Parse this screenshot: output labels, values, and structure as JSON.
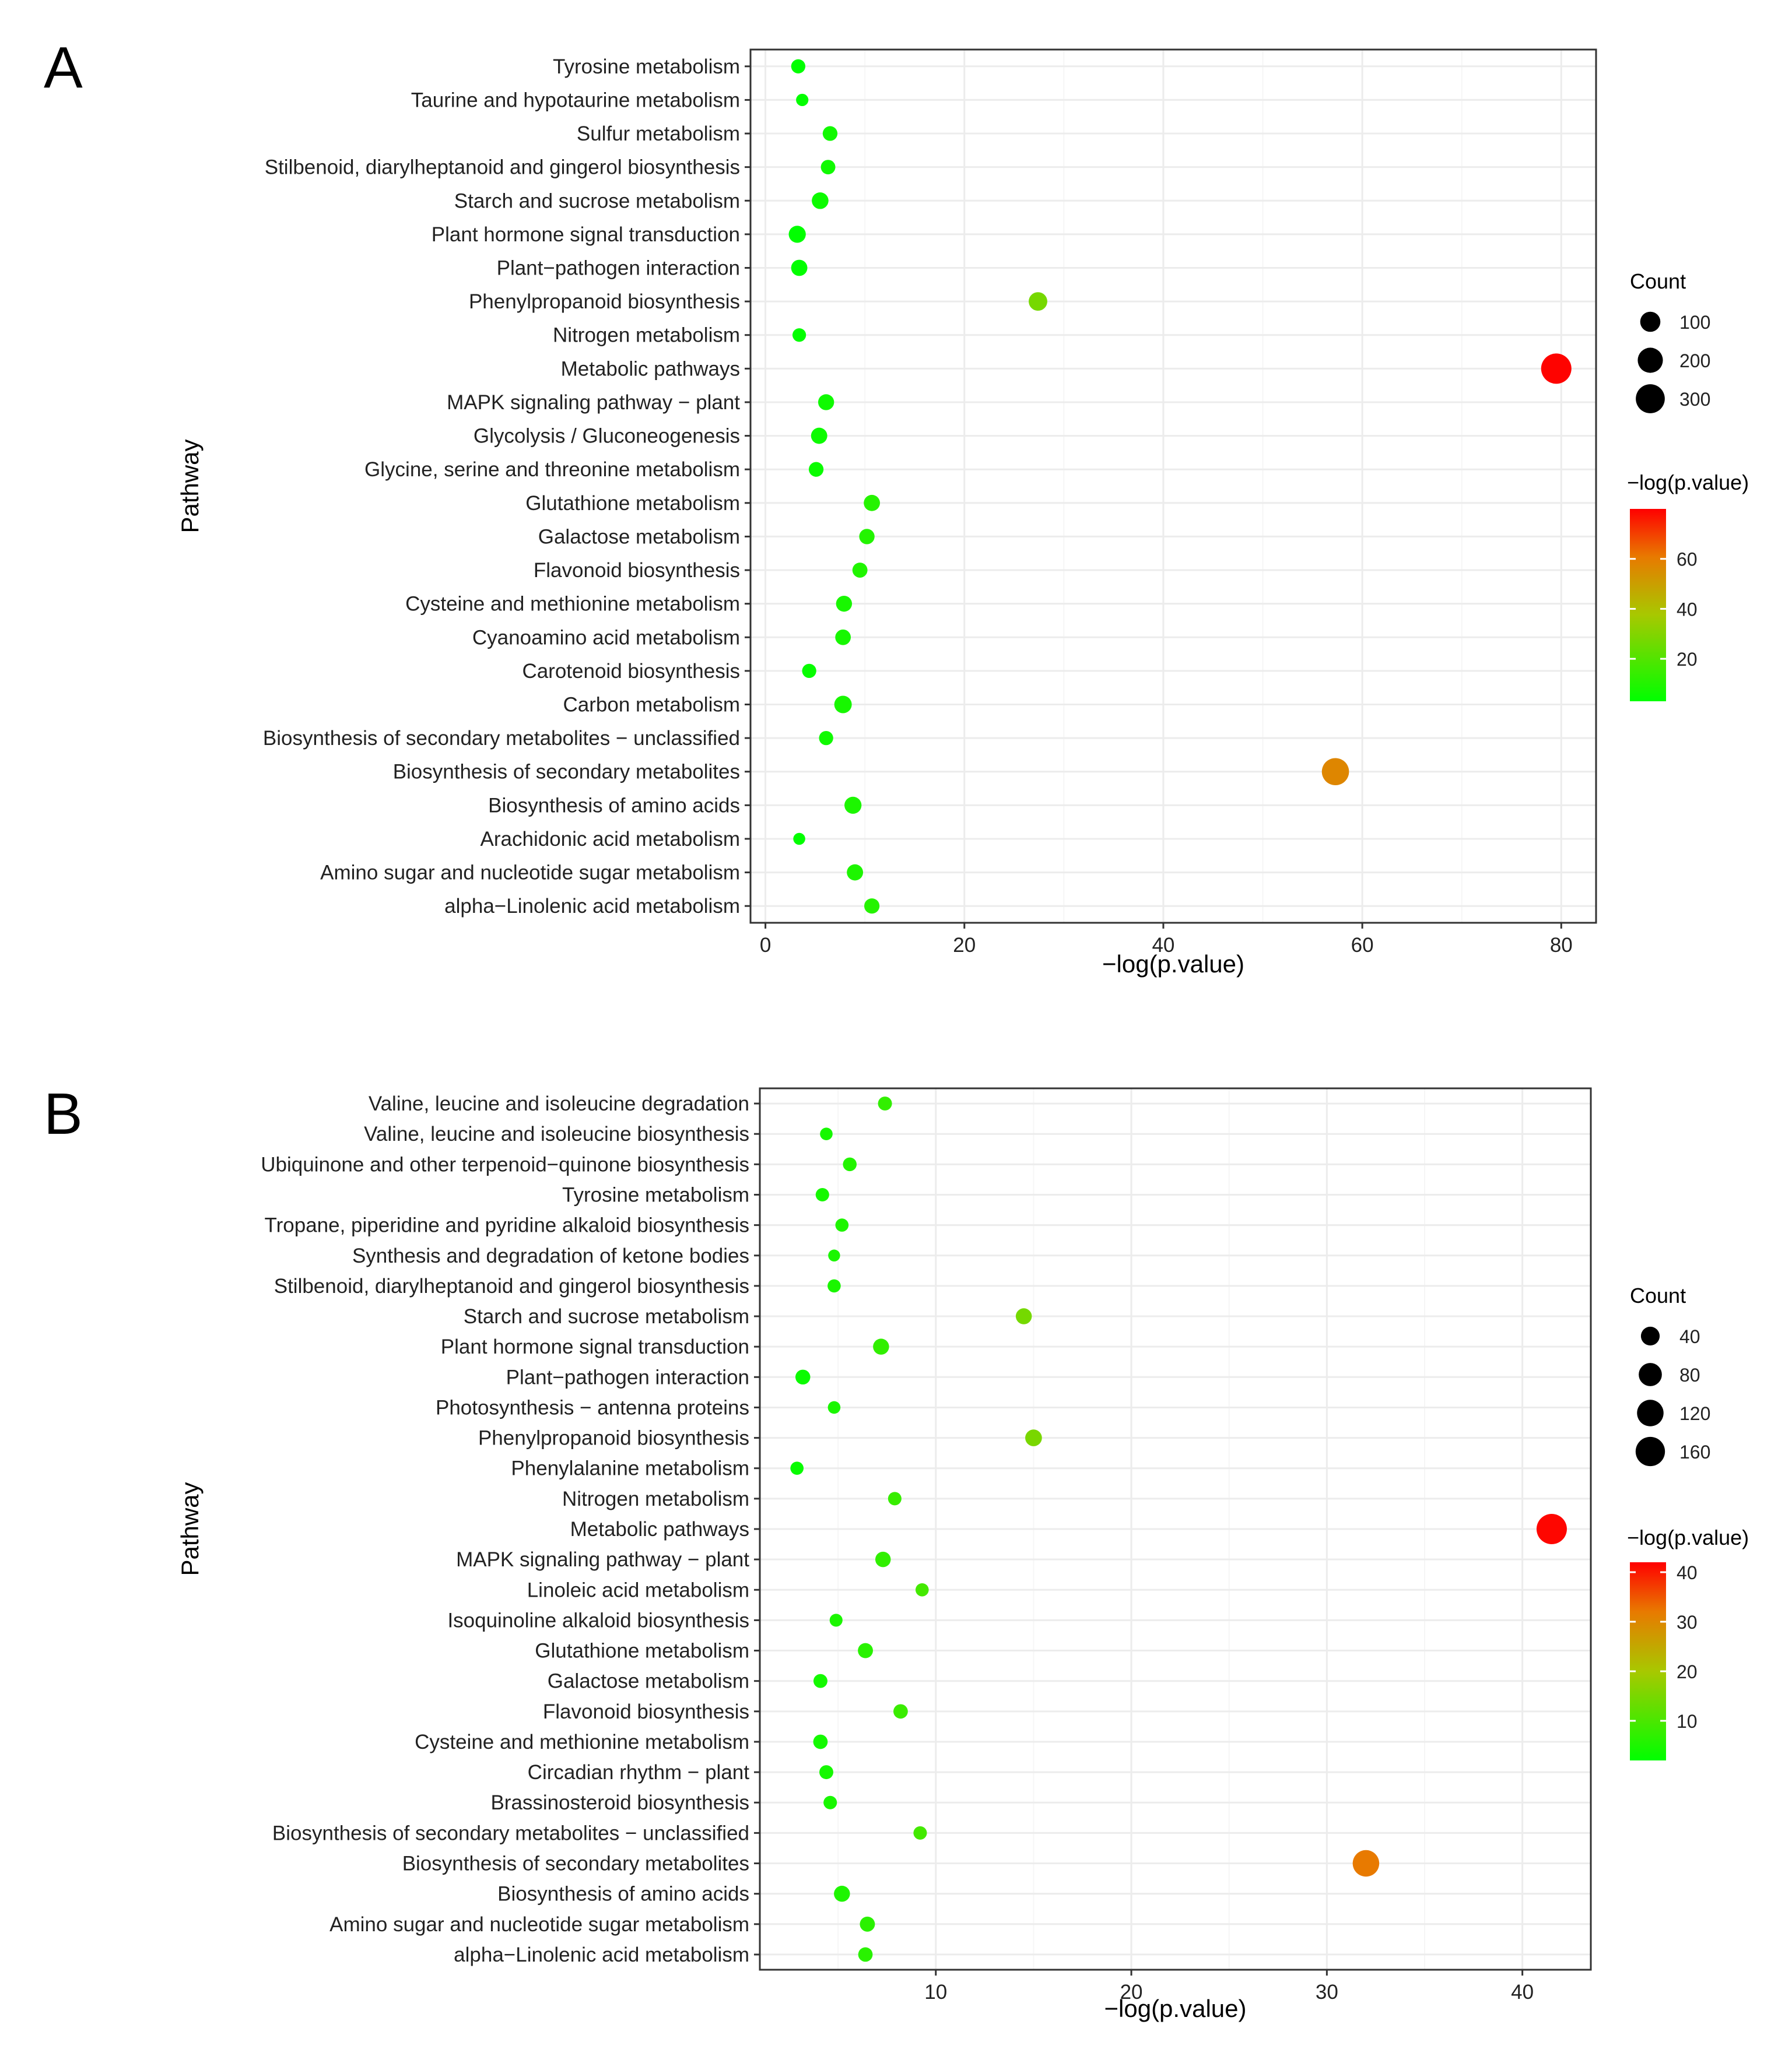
{
  "chart_data": [
    {
      "panel": "A",
      "type": "scatter",
      "xlabel": "−log(p.value)",
      "ylabel": "Pathway",
      "xlim": [
        -1.5,
        83.5
      ],
      "xticks": [
        0,
        20,
        40,
        60,
        80
      ],
      "size_legend": {
        "title": "Count",
        "values": [
          100,
          200,
          300
        ]
      },
      "color_legend": {
        "title": "−log(p.value)",
        "ticks": [
          20,
          40,
          60
        ],
        "min": 3,
        "max": 80,
        "low_color": "#00ff00",
        "mid_color": "#a8c800",
        "high_color": "#ff0000"
      },
      "points": [
        {
          "pathway": "Tyrosine metabolism",
          "x": 3.3,
          "count": 25
        },
        {
          "pathway": "Taurine and hypotaurine metabolism",
          "x": 3.7,
          "count": 12
        },
        {
          "pathway": "Sulfur metabolism",
          "x": 6.5,
          "count": 30
        },
        {
          "pathway": "Stilbenoid, diarylheptanoid and gingerol biosynthesis",
          "x": 6.3,
          "count": 28
        },
        {
          "pathway": "Starch and sucrose metabolism",
          "x": 5.5,
          "count": 50
        },
        {
          "pathway": "Plant hormone signal transduction",
          "x": 3.2,
          "count": 55
        },
        {
          "pathway": "Plant−pathogen interaction",
          "x": 3.4,
          "count": 45
        },
        {
          "pathway": "Phenylpropanoid biosynthesis",
          "x": 27.4,
          "count": 75
        },
        {
          "pathway": "Nitrogen metabolism",
          "x": 3.4,
          "count": 20
        },
        {
          "pathway": "Metabolic pathways",
          "x": 79.5,
          "count": 340
        },
        {
          "pathway": "MAPK signaling pathway − plant",
          "x": 6.1,
          "count": 42
        },
        {
          "pathway": "Glycolysis / Gluconeogenesis",
          "x": 5.4,
          "count": 45
        },
        {
          "pathway": "Glycine, serine and threonine metabolism",
          "x": 5.1,
          "count": 30
        },
        {
          "pathway": "Glutathione metabolism",
          "x": 10.7,
          "count": 45
        },
        {
          "pathway": "Galactose metabolism",
          "x": 10.2,
          "count": 36
        },
        {
          "pathway": "Flavonoid biosynthesis",
          "x": 9.5,
          "count": 33
        },
        {
          "pathway": "Cysteine and methionine metabolism",
          "x": 7.9,
          "count": 42
        },
        {
          "pathway": "Cyanoamino acid metabolism",
          "x": 7.8,
          "count": 38
        },
        {
          "pathway": "Carotenoid biosynthesis",
          "x": 4.4,
          "count": 25
        },
        {
          "pathway": "Carbon metabolism",
          "x": 7.8,
          "count": 60
        },
        {
          "pathway": "Biosynthesis of secondary metabolites − unclassified",
          "x": 6.1,
          "count": 25
        },
        {
          "pathway": "Biosynthesis of secondary metabolites",
          "x": 57.3,
          "count": 250
        },
        {
          "pathway": "Biosynthesis of amino acids",
          "x": 8.8,
          "count": 55
        },
        {
          "pathway": "Arachidonic acid metabolism",
          "x": 3.4,
          "count": 10
        },
        {
          "pathway": "Amino sugar and nucleotide sugar metabolism",
          "x": 9.0,
          "count": 45
        },
        {
          "pathway": "alpha−Linolenic acid metabolism",
          "x": 10.7,
          "count": 35
        }
      ]
    },
    {
      "panel": "B",
      "type": "scatter",
      "xlabel": "−log(p.value)",
      "ylabel": "Pathway",
      "xlim": [
        1.0,
        43.5
      ],
      "xticks": [
        10,
        20,
        30,
        40
      ],
      "size_legend": {
        "title": "Count",
        "values": [
          40,
          80,
          120,
          160
        ]
      },
      "color_legend": {
        "title": "−log(p.value)",
        "ticks": [
          10,
          20,
          30,
          40
        ],
        "min": 2,
        "max": 42,
        "low_color": "#00ff00",
        "mid_color": "#a8c800",
        "high_color": "#ff0000"
      },
      "points": [
        {
          "pathway": "Valine, leucine and isoleucine degradation",
          "x": 7.4,
          "count": 12
        },
        {
          "pathway": "Valine, leucine and isoleucine biosynthesis",
          "x": 4.4,
          "count": 7
        },
        {
          "pathway": "Ubiquinone and other terpenoid−quinone biosynthesis",
          "x": 5.6,
          "count": 11
        },
        {
          "pathway": "Tyrosine metabolism",
          "x": 4.2,
          "count": 10
        },
        {
          "pathway": "Tropane, piperidine and pyridine alkaloid biosynthesis",
          "x": 5.2,
          "count": 9
        },
        {
          "pathway": "Synthesis and degradation of ketone bodies",
          "x": 4.8,
          "count": 5
        },
        {
          "pathway": "Stilbenoid, diarylheptanoid and gingerol biosynthesis",
          "x": 4.8,
          "count": 9
        },
        {
          "pathway": "Starch and sucrose metabolism",
          "x": 14.5,
          "count": 22
        },
        {
          "pathway": "Plant hormone signal transduction",
          "x": 7.2,
          "count": 22
        },
        {
          "pathway": "Plant−pathogen interaction",
          "x": 3.2,
          "count": 16
        },
        {
          "pathway": "Photosynthesis − antenna proteins",
          "x": 4.8,
          "count": 7
        },
        {
          "pathway": "Phenylpropanoid biosynthesis",
          "x": 15.0,
          "count": 26
        },
        {
          "pathway": "Phenylalanine metabolism",
          "x": 2.9,
          "count": 9
        },
        {
          "pathway": "Nitrogen metabolism",
          "x": 7.9,
          "count": 10
        },
        {
          "pathway": "Metabolic pathways",
          "x": 41.5,
          "count": 175
        },
        {
          "pathway": "MAPK signaling pathway − plant",
          "x": 7.3,
          "count": 19
        },
        {
          "pathway": "Linoleic acid metabolism",
          "x": 9.3,
          "count": 9
        },
        {
          "pathway": "Isoquinoline alkaloid biosynthesis",
          "x": 4.9,
          "count": 8
        },
        {
          "pathway": "Glutathione metabolism",
          "x": 6.4,
          "count": 17
        },
        {
          "pathway": "Galactose metabolism",
          "x": 4.1,
          "count": 12
        },
        {
          "pathway": "Flavonoid biosynthesis",
          "x": 8.2,
          "count": 14
        },
        {
          "pathway": "Cysteine and methionine metabolism",
          "x": 4.1,
          "count": 14
        },
        {
          "pathway": "Circadian rhythm − plant",
          "x": 4.4,
          "count": 12
        },
        {
          "pathway": "Brassinosteroid biosynthesis",
          "x": 4.6,
          "count": 10
        },
        {
          "pathway": "Biosynthesis of secondary metabolites − unclassified",
          "x": 9.2,
          "count": 10
        },
        {
          "pathway": "Biosynthesis of secondary metabolites",
          "x": 32.0,
          "count": 120
        },
        {
          "pathway": "Biosynthesis of amino acids",
          "x": 5.2,
          "count": 22
        },
        {
          "pathway": "Amino sugar and nucleotide sugar metabolism",
          "x": 6.5,
          "count": 17
        },
        {
          "pathway": "alpha−Linolenic acid metabolism",
          "x": 6.4,
          "count": 14
        }
      ]
    }
  ]
}
